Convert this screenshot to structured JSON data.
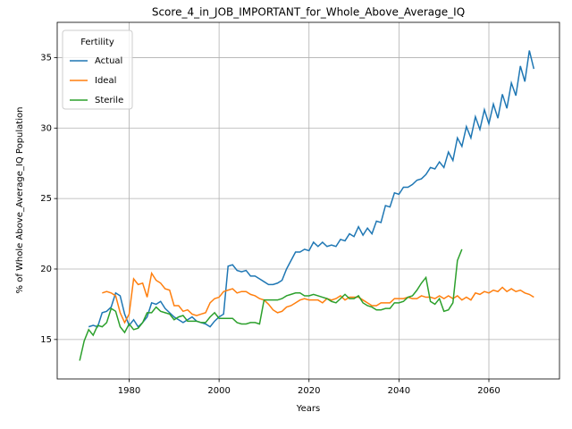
{
  "chart_data": {
    "type": "line",
    "title": "Score_4_in_JOB_IMPORTANT_for_Whole_Above_Average_IQ",
    "xlabel": "Years",
    "ylabel": "% of Whole Above_Average_IQ Population",
    "legend_title": "Fertility",
    "legend": "upper left",
    "grid": true,
    "xlim": [
      1964,
      2075.7
    ],
    "ylim": [
      12.2,
      37.5
    ],
    "xticks": [
      1980,
      2000,
      2020,
      2040,
      2060
    ],
    "yticks": [
      15,
      20,
      25,
      30,
      35
    ],
    "x": [
      1969,
      1970,
      1971,
      1972,
      1973,
      1974,
      1975,
      1976,
      1977,
      1978,
      1979,
      1980,
      1981,
      1982,
      1983,
      1984,
      1985,
      1986,
      1987,
      1988,
      1989,
      1990,
      1991,
      1992,
      1993,
      1994,
      1995,
      1996,
      1997,
      1998,
      1999,
      2000,
      2001,
      2002,
      2003,
      2004,
      2005,
      2006,
      2007,
      2008,
      2009,
      2010,
      2011,
      2012,
      2013,
      2014,
      2015,
      2016,
      2017,
      2018,
      2019,
      2020,
      2021,
      2022,
      2023,
      2024,
      2025,
      2026,
      2027,
      2028,
      2029,
      2030,
      2031,
      2032,
      2033,
      2034,
      2035,
      2036,
      2037,
      2038,
      2039,
      2040,
      2041,
      2042,
      2043,
      2044,
      2045,
      2046,
      2047,
      2048,
      2049,
      2050,
      2051,
      2052,
      2053,
      2054,
      2055,
      2056,
      2057,
      2058,
      2059,
      2060,
      2061,
      2062,
      2063,
      2064,
      2065,
      2066,
      2067,
      2068,
      2069,
      2070
    ],
    "series": [
      {
        "name": "Actual",
        "color": "#1f77b4",
        "values": [
          null,
          null,
          15.9,
          16.0,
          15.9,
          16.9,
          17.0,
          17.3,
          18.3,
          18.1,
          16.8,
          16.0,
          16.4,
          15.9,
          16.2,
          16.6,
          17.6,
          17.5,
          17.7,
          17.2,
          16.9,
          16.6,
          16.4,
          16.2,
          16.4,
          16.6,
          16.3,
          16.2,
          16.1,
          15.9,
          16.3,
          16.6,
          16.8,
          20.2,
          20.3,
          19.9,
          19.8,
          19.9,
          19.5,
          19.5,
          19.3,
          19.1,
          18.9,
          18.9,
          19.0,
          19.2,
          20.0,
          20.6,
          21.2,
          21.2,
          21.4,
          21.3,
          21.9,
          21.6,
          21.9,
          21.6,
          21.7,
          21.6,
          22.1,
          22.0,
          22.5,
          22.3,
          23.0,
          22.4,
          22.9,
          22.5,
          23.4,
          23.3,
          24.5,
          24.4,
          25.4,
          25.3,
          25.8,
          25.8,
          26.0,
          26.3,
          26.4,
          26.7,
          27.2,
          27.1,
          27.6,
          27.2,
          28.3,
          27.7,
          29.3,
          28.7,
          30.1,
          29.3,
          30.8,
          29.9,
          31.3,
          30.3,
          31.7,
          30.7,
          32.4,
          31.4,
          33.2,
          32.3,
          34.4,
          33.3,
          35.5,
          34.2
        ]
      },
      {
        "name": "Ideal",
        "color": "#ff7f0e",
        "values": [
          null,
          null,
          null,
          null,
          null,
          18.3,
          18.4,
          18.3,
          18.1,
          16.9,
          16.2,
          16.8,
          19.3,
          18.9,
          19.0,
          18.0,
          19.7,
          19.2,
          19.0,
          18.6,
          18.5,
          17.4,
          17.4,
          17.0,
          17.1,
          16.8,
          16.7,
          16.8,
          16.9,
          17.6,
          17.9,
          18.0,
          18.4,
          18.5,
          18.6,
          18.3,
          18.4,
          18.4,
          18.2,
          18.1,
          17.9,
          17.8,
          17.5,
          17.1,
          16.9,
          17.0,
          17.3,
          17.4,
          17.6,
          17.8,
          17.9,
          17.8,
          17.8,
          17.8,
          17.6,
          17.9,
          17.8,
          17.9,
          18.1,
          17.8,
          18.0,
          18.0,
          18.0,
          17.8,
          17.6,
          17.4,
          17.4,
          17.6,
          17.6,
          17.6,
          17.9,
          17.9,
          17.9,
          18.0,
          17.9,
          17.9,
          18.1,
          18.0,
          18.0,
          17.9,
          18.1,
          17.9,
          18.1,
          17.9,
          18.1,
          17.8,
          18.0,
          17.8,
          18.3,
          18.2,
          18.4,
          18.3,
          18.5,
          18.4,
          18.7,
          18.4,
          18.6,
          18.4,
          18.5,
          18.3,
          18.2,
          18.0
        ]
      },
      {
        "name": "Sterile",
        "color": "#2ca02c",
        "values": [
          13.5,
          14.9,
          15.7,
          15.3,
          16.0,
          15.9,
          16.2,
          17.2,
          17.0,
          15.9,
          15.5,
          16.1,
          15.7,
          15.8,
          16.2,
          16.9,
          16.9,
          17.3,
          17.0,
          16.9,
          16.8,
          16.4,
          16.6,
          16.7,
          16.3,
          16.3,
          16.3,
          16.2,
          16.2,
          16.6,
          16.9,
          16.5,
          16.5,
          16.5,
          16.5,
          16.2,
          16.1,
          16.1,
          16.2,
          16.2,
          16.1,
          17.8,
          17.8,
          17.8,
          17.8,
          17.9,
          18.1,
          18.2,
          18.3,
          18.3,
          18.1,
          18.1,
          18.2,
          18.1,
          18.0,
          17.9,
          17.7,
          17.6,
          17.9,
          18.2,
          17.9,
          17.9,
          18.1,
          17.6,
          17.4,
          17.3,
          17.1,
          17.1,
          17.2,
          17.2,
          17.6,
          17.6,
          17.7,
          18.0,
          18.1,
          18.5,
          19.0,
          19.4,
          17.7,
          17.5,
          17.9,
          17.0,
          17.1,
          17.6,
          20.6,
          21.4,
          null,
          null,
          null,
          null,
          null,
          null,
          null,
          null,
          null,
          null,
          null,
          null,
          null,
          null,
          null,
          null
        ]
      }
    ]
  }
}
